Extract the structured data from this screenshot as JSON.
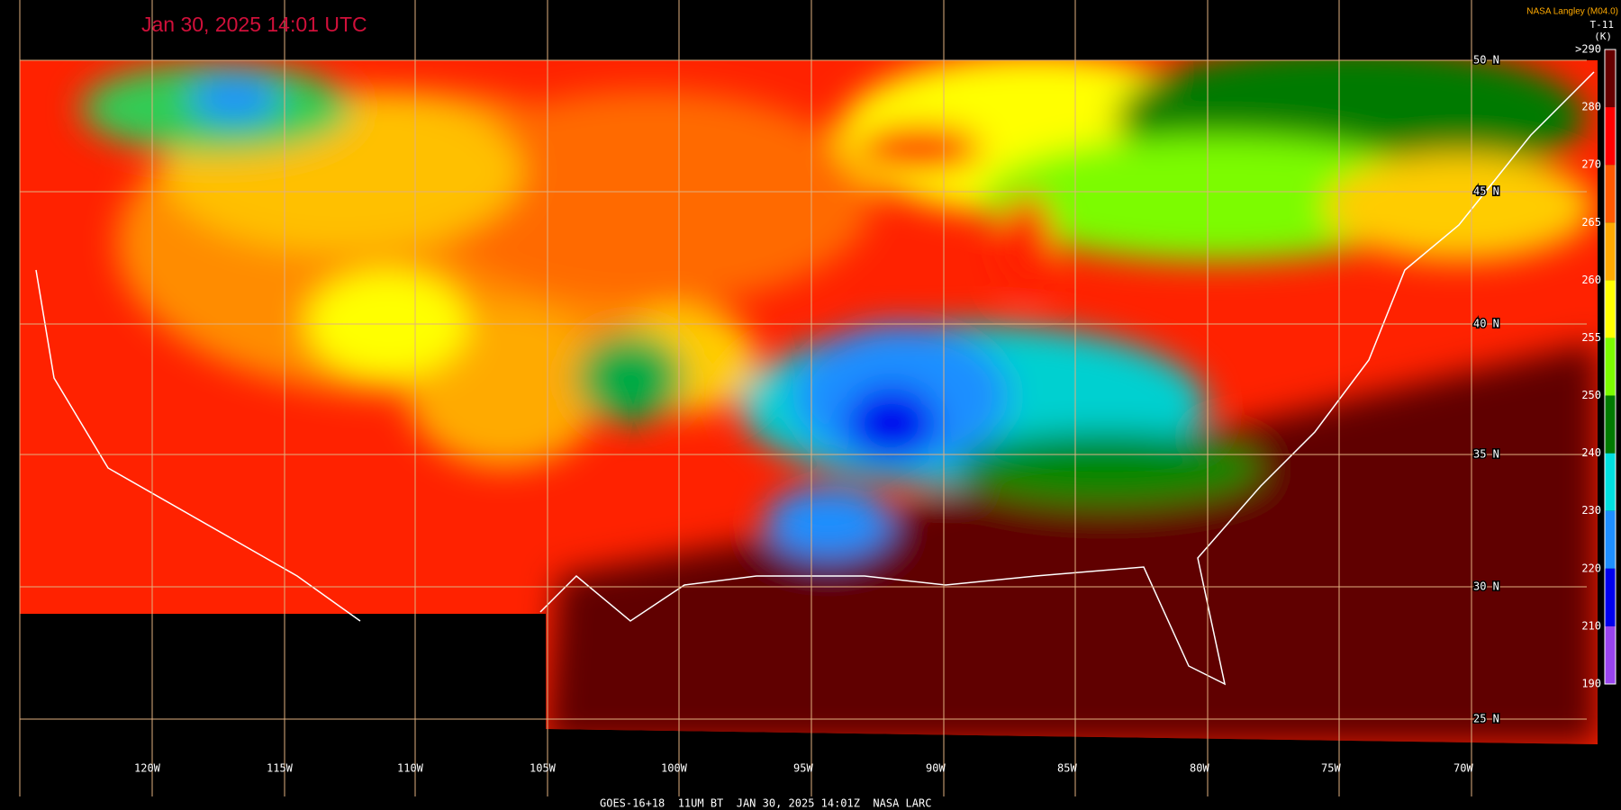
{
  "header": {
    "title": "Jan 30, 2025 14:01 UTC",
    "credit": "NASA Langley (M04.0)",
    "channel": "T-11",
    "unit": "(K)"
  },
  "latitude_labels": [
    "50 N",
    "45 N",
    "40 N",
    "35 N",
    "30 N",
    "25 N"
  ],
  "longitude_labels": [
    "120W",
    "115W",
    "110W",
    "105W",
    "100W",
    "95W",
    "90W",
    "85W",
    "80W",
    "75W",
    "70W"
  ],
  "colorbar": {
    "labels": [
      ">290",
      "280",
      "270",
      "265",
      "260",
      "255",
      "250",
      "240",
      "230",
      "220",
      "210",
      "190"
    ],
    "colors": [
      "#660000",
      "#ff0000",
      "#ff5a00",
      "#ffaa00",
      "#ffff00",
      "#7cfc00",
      "#007a00",
      "#00e0e0",
      "#1e8fff",
      "#0000ee",
      "#9944ee"
    ]
  },
  "footer": "GOES-16+18  11UM BT  JAN 30, 2025 14:01Z  NASA LARC"
}
